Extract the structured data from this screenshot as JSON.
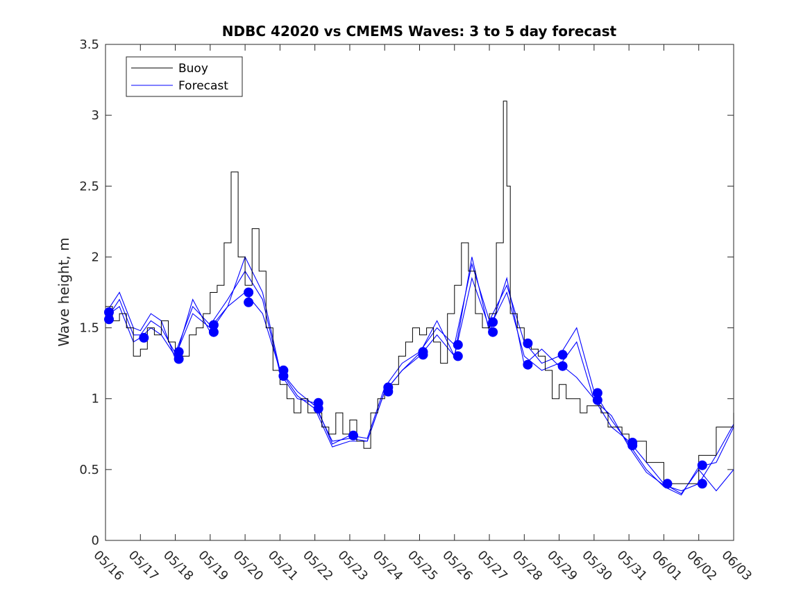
{
  "chart_data": {
    "type": "line",
    "title": "NDBC 42020 vs CMEMS Waves: 3 to 5 day forecast",
    "xlabel": "",
    "ylabel": "Wave height, m",
    "xlim": [
      "05/16",
      "06/03"
    ],
    "ylim": [
      0,
      3.5
    ],
    "x_ticks": [
      "05/16",
      "05/17",
      "05/18",
      "05/19",
      "05/20",
      "05/21",
      "05/22",
      "05/23",
      "05/24",
      "05/25",
      "05/26",
      "05/27",
      "05/28",
      "05/29",
      "05/30",
      "05/31",
      "06/01",
      "06/02",
      "06/03"
    ],
    "y_ticks": [
      "0",
      "0.5",
      "1",
      "1.5",
      "2",
      "2.5",
      "3",
      "3.5"
    ],
    "grid": false,
    "legend": {
      "position": "top-left",
      "entries": [
        "Buoy",
        "Forecast"
      ]
    },
    "series": [
      {
        "name": "Buoy",
        "color": "#000000",
        "x_days": [
          0.0,
          0.2,
          0.4,
          0.6,
          0.8,
          1.0,
          1.2,
          1.4,
          1.6,
          1.8,
          2.0,
          2.2,
          2.4,
          2.6,
          2.8,
          3.0,
          3.2,
          3.4,
          3.6,
          3.8,
          4.0,
          4.2,
          4.4,
          4.6,
          4.8,
          5.0,
          5.2,
          5.4,
          5.6,
          5.8,
          6.0,
          6.2,
          6.4,
          6.6,
          6.8,
          7.0,
          7.2,
          7.4,
          7.6,
          7.8,
          8.0,
          8.2,
          8.4,
          8.6,
          8.8,
          9.0,
          9.2,
          9.4,
          9.6,
          9.8,
          10.0,
          10.2,
          10.4,
          10.6,
          10.8,
          11.0,
          11.2,
          11.4,
          11.5,
          11.6,
          11.8,
          12.0,
          12.2,
          12.4,
          12.6,
          12.8,
          13.0,
          13.2,
          13.4,
          13.6,
          13.8,
          14.0,
          14.2,
          14.4,
          14.6,
          14.8,
          15.0,
          15.5,
          16.0,
          16.5,
          17.0,
          17.5,
          18.0
        ],
        "y": [
          1.65,
          1.55,
          1.6,
          1.5,
          1.3,
          1.35,
          1.5,
          1.45,
          1.55,
          1.4,
          1.35,
          1.3,
          1.45,
          1.5,
          1.6,
          1.75,
          1.8,
          2.1,
          2.6,
          2.0,
          1.8,
          2.2,
          1.9,
          1.5,
          1.2,
          1.1,
          1.0,
          0.9,
          1.0,
          0.9,
          0.9,
          0.8,
          0.75,
          0.9,
          0.75,
          0.85,
          0.7,
          0.65,
          0.9,
          1.0,
          1.05,
          1.1,
          1.3,
          1.4,
          1.5,
          1.45,
          1.5,
          1.4,
          1.25,
          1.6,
          1.8,
          2.1,
          1.9,
          1.6,
          1.5,
          1.6,
          2.1,
          3.1,
          2.5,
          1.6,
          1.5,
          1.4,
          1.35,
          1.3,
          1.2,
          1.0,
          1.1,
          1.0,
          1.0,
          0.9,
          0.95,
          0.95,
          0.9,
          0.8,
          0.8,
          0.75,
          0.7,
          0.55,
          0.4,
          0.4,
          0.6,
          0.8,
          0.9
        ]
      },
      {
        "name": "Forecast",
        "color": "#0000ff",
        "runs": [
          {
            "x_days": [
              0.0,
              0.4,
              0.8,
              1.0,
              1.3,
              1.6,
              2.0,
              2.5,
              3.0,
              3.5,
              4.0,
              4.5,
              5.0,
              5.5,
              6.0,
              6.5,
              7.0,
              7.5,
              8.0,
              8.5,
              9.0,
              9.5,
              10.0,
              10.5,
              11.0,
              11.5,
              12.0,
              12.5,
              13.0,
              13.5,
              14.0,
              14.5,
              15.0,
              15.5,
              16.0,
              16.5,
              17.0,
              17.5,
              18.0
            ],
            "y": [
              1.58,
              1.65,
              1.4,
              1.43,
              1.5,
              1.45,
              1.3,
              1.6,
              1.5,
              1.65,
              1.75,
              1.6,
              1.2,
              1.05,
              0.95,
              0.7,
              0.72,
              0.7,
              1.05,
              1.2,
              1.3,
              1.45,
              1.3,
              1.85,
              1.5,
              1.75,
              1.3,
              1.2,
              1.25,
              1.15,
              1.0,
              0.8,
              0.7,
              0.55,
              0.4,
              0.33,
              0.5,
              0.35,
              0.5
            ]
          },
          {
            "x_days": [
              0.0,
              0.4,
              0.8,
              1.0,
              1.3,
              1.6,
              2.0,
              2.5,
              3.0,
              3.5,
              4.0,
              4.5,
              5.0,
              5.5,
              6.0,
              6.5,
              7.0,
              7.5,
              8.0,
              8.5,
              9.0,
              9.5,
              10.0,
              10.5,
              11.0,
              11.5,
              12.0,
              12.5,
              13.0,
              13.5,
              14.0,
              14.5,
              15.0,
              15.5,
              16.0,
              16.5,
              17.0,
              17.5,
              18.0
            ],
            "y": [
              1.55,
              1.7,
              1.45,
              1.45,
              1.55,
              1.5,
              1.32,
              1.65,
              1.52,
              1.7,
              1.9,
              1.7,
              1.18,
              1.0,
              0.97,
              0.68,
              0.74,
              0.72,
              1.08,
              1.25,
              1.33,
              1.5,
              1.38,
              1.95,
              1.55,
              1.8,
              1.4,
              1.25,
              1.3,
              1.5,
              1.05,
              0.85,
              0.68,
              0.5,
              0.38,
              0.32,
              0.52,
              0.55,
              0.8
            ]
          },
          {
            "x_days": [
              0.0,
              0.4,
              0.8,
              1.0,
              1.3,
              1.6,
              2.0,
              2.5,
              3.0,
              3.5,
              4.0,
              4.5,
              5.0,
              5.5,
              6.0,
              6.5,
              7.0,
              7.5,
              8.0,
              8.5,
              9.0,
              9.5,
              10.0,
              10.5,
              11.0,
              11.5,
              12.0,
              12.5,
              13.0,
              13.5,
              14.0,
              14.5,
              15.0,
              15.5,
              16.0,
              16.5,
              17.0,
              17.5,
              18.0
            ],
            "y": [
              1.6,
              1.75,
              1.5,
              1.48,
              1.6,
              1.55,
              1.28,
              1.7,
              1.47,
              1.65,
              2.0,
              1.75,
              1.2,
              1.02,
              0.93,
              0.66,
              0.7,
              0.7,
              1.05,
              1.2,
              1.32,
              1.55,
              1.3,
              2.0,
              1.47,
              1.85,
              1.24,
              1.35,
              1.23,
              1.4,
              0.99,
              0.88,
              0.66,
              0.48,
              0.39,
              0.35,
              0.4,
              0.6,
              0.82
            ]
          }
        ],
        "markers": [
          {
            "x_day": 0.1,
            "y": 1.61
          },
          {
            "x_day": 0.1,
            "y": 1.56
          },
          {
            "x_day": 1.1,
            "y": 1.43
          },
          {
            "x_day": 2.1,
            "y": 1.33
          },
          {
            "x_day": 2.1,
            "y": 1.28
          },
          {
            "x_day": 3.1,
            "y": 1.52
          },
          {
            "x_day": 3.1,
            "y": 1.47
          },
          {
            "x_day": 4.1,
            "y": 1.75
          },
          {
            "x_day": 4.1,
            "y": 1.68
          },
          {
            "x_day": 5.1,
            "y": 1.2
          },
          {
            "x_day": 5.1,
            "y": 1.16
          },
          {
            "x_day": 6.1,
            "y": 0.97
          },
          {
            "x_day": 6.1,
            "y": 0.93
          },
          {
            "x_day": 7.1,
            "y": 0.74
          },
          {
            "x_day": 8.1,
            "y": 1.08
          },
          {
            "x_day": 8.1,
            "y": 1.05
          },
          {
            "x_day": 9.1,
            "y": 1.33
          },
          {
            "x_day": 9.1,
            "y": 1.31
          },
          {
            "x_day": 10.1,
            "y": 1.38
          },
          {
            "x_day": 10.1,
            "y": 1.3
          },
          {
            "x_day": 11.1,
            "y": 1.54
          },
          {
            "x_day": 11.1,
            "y": 1.47
          },
          {
            "x_day": 12.1,
            "y": 1.39
          },
          {
            "x_day": 12.1,
            "y": 1.24
          },
          {
            "x_day": 13.1,
            "y": 1.31
          },
          {
            "x_day": 13.1,
            "y": 1.23
          },
          {
            "x_day": 14.1,
            "y": 1.04
          },
          {
            "x_day": 14.1,
            "y": 0.99
          },
          {
            "x_day": 15.1,
            "y": 0.69
          },
          {
            "x_day": 15.1,
            "y": 0.67
          },
          {
            "x_day": 16.1,
            "y": 0.4
          },
          {
            "x_day": 17.1,
            "y": 0.53
          },
          {
            "x_day": 17.1,
            "y": 0.4
          }
        ]
      }
    ]
  }
}
